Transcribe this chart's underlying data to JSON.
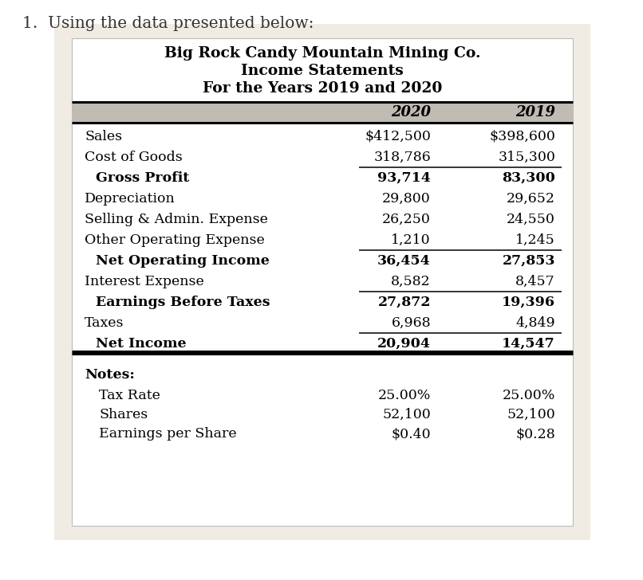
{
  "title_line1": "Big Rock Candy Mountain Mining Co.",
  "title_line2": "Income Statements",
  "title_line3": "For the Years 2019 and 2020",
  "header_year1": "2020",
  "header_year2": "2019",
  "page_bg": "#ffffff",
  "outer_bg": "#f0ece4",
  "inner_bg": "#ffffff",
  "header_bg": "#c0bcb4",
  "rows": [
    {
      "label": "Sales",
      "v2020": "$412,500",
      "v2019": "$398,600",
      "bold": false,
      "indent": false,
      "line_below": false,
      "double_below": false
    },
    {
      "label": "Cost of Goods",
      "v2020": "318,786",
      "v2019": "315,300",
      "bold": false,
      "indent": false,
      "line_below": true,
      "double_below": false
    },
    {
      "label": "Gross Profit",
      "v2020": "93,714",
      "v2019": "83,300",
      "bold": true,
      "indent": true,
      "line_below": false,
      "double_below": false
    },
    {
      "label": "Depreciation",
      "v2020": "29,800",
      "v2019": "29,652",
      "bold": false,
      "indent": false,
      "line_below": false,
      "double_below": false
    },
    {
      "label": "Selling & Admin. Expense",
      "v2020": "26,250",
      "v2019": "24,550",
      "bold": false,
      "indent": false,
      "line_below": false,
      "double_below": false
    },
    {
      "label": "Other Operating Expense",
      "v2020": "1,210",
      "v2019": "1,245",
      "bold": false,
      "indent": false,
      "line_below": true,
      "double_below": false
    },
    {
      "label": "Net Operating Income",
      "v2020": "36,454",
      "v2019": "27,853",
      "bold": true,
      "indent": true,
      "line_below": false,
      "double_below": false
    },
    {
      "label": "Interest Expense",
      "v2020": "8,582",
      "v2019": "8,457",
      "bold": false,
      "indent": false,
      "line_below": true,
      "double_below": false
    },
    {
      "label": "Earnings Before Taxes",
      "v2020": "27,872",
      "v2019": "19,396",
      "bold": true,
      "indent": true,
      "line_below": false,
      "double_below": false
    },
    {
      "label": "Taxes",
      "v2020": "6,968",
      "v2019": "4,849",
      "bold": false,
      "indent": false,
      "line_below": true,
      "double_below": false
    },
    {
      "label": "Net Income",
      "v2020": "20,904",
      "v2019": "14,547",
      "bold": true,
      "indent": true,
      "line_below": true,
      "double_below": true
    }
  ],
  "notes_label": "Notes:",
  "notes_rows": [
    {
      "label": "Tax Rate",
      "v2020": "25.00%",
      "v2019": "25.00%"
    },
    {
      "label": "Shares",
      "v2020": "52,100",
      "v2019": "52,100"
    },
    {
      "label": "Earnings per Share",
      "v2020": "$0.40",
      "v2019": "$0.28"
    }
  ],
  "outer_title": "1.  Using the data presented below:",
  "title_fontsize": 13.5,
  "row_fontsize": 12.5,
  "header_fontsize": 13.0,
  "outer_title_fontsize": 14.5
}
